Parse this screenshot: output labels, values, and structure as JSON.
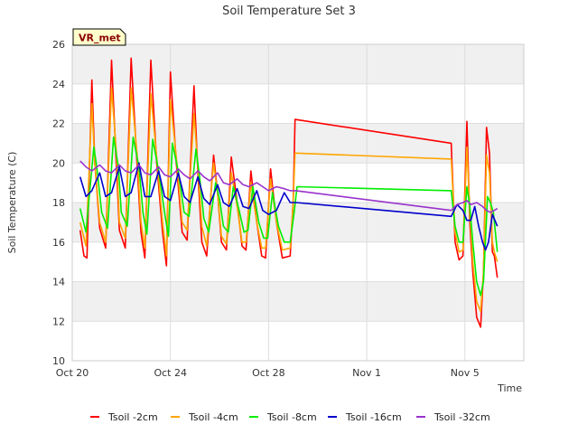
{
  "chart_data": {
    "type": "line",
    "title": "Soil Temperature Set 3",
    "xlabel": "Time",
    "ylabel": "Soil Temperature (C)",
    "badge": "VR_met",
    "x_unit": "days_since_2021-10-20",
    "xlim": [
      0,
      23
    ],
    "ylim": [
      10,
      26
    ],
    "yticks": [
      10,
      12,
      14,
      16,
      18,
      20,
      22,
      24,
      26
    ],
    "xticks": [
      {
        "x": 0,
        "label": "Oct 20"
      },
      {
        "x": 5,
        "label": "Oct 24"
      },
      {
        "x": 10,
        "label": "Oct 28"
      },
      {
        "x": 15,
        "label": "Nov 1"
      },
      {
        "x": 20,
        "label": "Nov 5"
      }
    ],
    "grid": true,
    "legend_position": "bottom",
    "colors": {
      "plot_band": "#f0f0f0",
      "grid": "#dddddd",
      "badge_bg": "#ffffcc"
    },
    "series": [
      {
        "name": "Tsoil -2cm",
        "color": "#ff0000",
        "x": [
          0.4,
          0.6,
          0.75,
          1.0,
          1.15,
          1.4,
          1.7,
          2.0,
          2.25,
          2.4,
          2.7,
          3.0,
          3.3,
          3.5,
          3.7,
          4.0,
          4.3,
          4.6,
          4.8,
          5.0,
          5.3,
          5.6,
          5.85,
          6.2,
          6.4,
          6.6,
          6.85,
          7.2,
          7.4,
          7.6,
          7.85,
          8.1,
          8.4,
          8.65,
          8.85,
          9.1,
          9.4,
          9.65,
          9.85,
          10.1,
          10.4,
          10.7,
          11.1,
          11.25,
          11.35,
          19.3,
          19.5,
          19.7,
          19.9,
          20.1,
          20.25,
          20.4,
          20.6,
          20.8,
          20.95,
          21.1,
          21.25,
          21.4,
          21.5,
          21.65
        ],
        "y": [
          16.6,
          15.3,
          15.2,
          24.2,
          20.0,
          16.7,
          15.7,
          25.2,
          19.8,
          16.6,
          15.7,
          25.3,
          20.0,
          16.5,
          15.2,
          25.2,
          20.0,
          16.5,
          14.8,
          24.6,
          20.0,
          16.5,
          16.1,
          23.9,
          19.5,
          16.0,
          15.3,
          20.4,
          18.5,
          16.0,
          15.6,
          20.3,
          18.0,
          15.8,
          15.6,
          19.6,
          17.0,
          15.3,
          15.2,
          19.7,
          17.0,
          15.2,
          15.3,
          18.0,
          22.2,
          21.0,
          16.0,
          15.1,
          15.3,
          22.1,
          17.0,
          14.5,
          12.2,
          11.7,
          14.5,
          21.8,
          20.5,
          15.5,
          15.3,
          14.2
        ]
      },
      {
        "name": "Tsoil -4cm",
        "color": "#ffa500",
        "x": [
          0.4,
          0.7,
          1.0,
          1.15,
          1.4,
          1.7,
          2.0,
          2.25,
          2.4,
          2.7,
          3.0,
          3.3,
          3.5,
          3.7,
          4.0,
          4.3,
          4.6,
          4.8,
          5.0,
          5.3,
          5.6,
          5.85,
          6.2,
          6.4,
          6.6,
          6.85,
          7.2,
          7.4,
          7.6,
          7.85,
          8.1,
          8.4,
          8.65,
          8.85,
          9.1,
          9.4,
          9.65,
          9.85,
          10.1,
          10.4,
          10.7,
          11.1,
          11.25,
          11.35,
          19.3,
          19.5,
          19.7,
          19.9,
          20.1,
          20.25,
          20.4,
          20.6,
          20.8,
          20.95,
          21.1,
          21.25,
          21.4,
          21.5,
          21.65
        ],
        "y": [
          17.0,
          15.8,
          23.0,
          20.0,
          17.0,
          16.0,
          23.8,
          20.5,
          17.0,
          16.2,
          23.8,
          20.5,
          17.0,
          15.7,
          23.5,
          20.3,
          17.0,
          15.3,
          23.2,
          20.3,
          17.0,
          16.6,
          22.5,
          19.8,
          16.8,
          15.8,
          20.0,
          18.5,
          16.3,
          15.9,
          19.5,
          17.8,
          16.0,
          16.0,
          19.0,
          17.0,
          15.7,
          15.7,
          19.2,
          17.0,
          15.6,
          15.7,
          18.0,
          20.5,
          20.2,
          16.5,
          15.5,
          15.6,
          20.8,
          17.5,
          15.0,
          13.0,
          12.5,
          14.5,
          20.4,
          19.5,
          16.0,
          15.5,
          15.0
        ]
      },
      {
        "name": "Tsoil -8cm",
        "color": "#00ee00",
        "x": [
          0.4,
          0.7,
          1.1,
          1.25,
          1.5,
          1.8,
          2.1,
          2.35,
          2.5,
          2.8,
          3.1,
          3.4,
          3.6,
          3.8,
          4.1,
          4.4,
          4.7,
          4.9,
          5.1,
          5.4,
          5.7,
          5.95,
          6.3,
          6.5,
          6.7,
          6.95,
          7.3,
          7.5,
          7.7,
          7.95,
          8.2,
          8.5,
          8.75,
          8.95,
          9.2,
          9.5,
          9.75,
          9.95,
          10.2,
          10.5,
          10.8,
          11.1,
          11.3,
          11.45,
          19.3,
          19.5,
          19.7,
          19.9,
          20.1,
          20.25,
          20.4,
          20.6,
          20.8,
          20.95,
          21.15,
          21.3,
          21.45,
          21.55,
          21.65
        ],
        "y": [
          17.7,
          16.5,
          20.8,
          19.8,
          17.5,
          16.7,
          21.3,
          19.8,
          17.5,
          16.8,
          21.3,
          19.8,
          17.5,
          16.4,
          21.2,
          19.6,
          17.5,
          16.3,
          21.0,
          19.6,
          17.5,
          17.3,
          20.7,
          19.2,
          17.2,
          16.5,
          19.0,
          18.2,
          16.8,
          16.5,
          18.8,
          17.6,
          16.5,
          16.6,
          18.8,
          17.0,
          16.2,
          16.2,
          18.5,
          16.8,
          16.0,
          16.0,
          17.5,
          18.8,
          18.6,
          16.8,
          16.0,
          16.0,
          18.8,
          17.8,
          16.0,
          14.0,
          13.3,
          14.0,
          18.3,
          18.0,
          17.5,
          16.5,
          15.5
        ]
      },
      {
        "name": "Tsoil -16cm",
        "color": "#0000cc",
        "x": [
          0.4,
          0.7,
          1.0,
          1.4,
          1.7,
          2.0,
          2.4,
          2.7,
          3.0,
          3.4,
          3.7,
          4.0,
          4.4,
          4.7,
          5.0,
          5.4,
          5.7,
          6.0,
          6.4,
          6.7,
          7.0,
          7.4,
          7.7,
          8.0,
          8.4,
          8.7,
          9.0,
          9.4,
          9.7,
          10.0,
          10.4,
          10.8,
          11.1,
          11.4,
          19.3,
          19.6,
          19.9,
          20.1,
          20.3,
          20.5,
          20.7,
          20.9,
          21.05,
          21.2,
          21.4,
          21.65
        ],
        "y": [
          19.3,
          18.3,
          18.6,
          19.5,
          18.3,
          18.5,
          19.8,
          18.3,
          18.5,
          20.0,
          18.3,
          18.3,
          19.6,
          18.3,
          18.1,
          19.5,
          18.3,
          18.0,
          19.3,
          18.2,
          17.9,
          18.9,
          18.0,
          17.8,
          18.7,
          17.8,
          17.7,
          18.6,
          17.6,
          17.4,
          17.6,
          18.5,
          18.0,
          18.0,
          17.3,
          17.9,
          17.6,
          17.1,
          17.1,
          17.8,
          16.8,
          16.0,
          15.6,
          16.0,
          17.4,
          16.8
        ]
      },
      {
        "name": "Tsoil -32cm",
        "color": "#9933cc",
        "x": [
          0.4,
          0.7,
          1.0,
          1.4,
          1.7,
          2.0,
          2.4,
          2.7,
          3.0,
          3.4,
          3.7,
          4.0,
          4.4,
          4.7,
          5.0,
          5.4,
          5.7,
          6.0,
          6.4,
          6.7,
          7.0,
          7.4,
          7.7,
          8.0,
          8.4,
          8.7,
          9.0,
          9.4,
          9.7,
          10.0,
          10.4,
          10.8,
          11.1,
          11.4,
          19.3,
          19.6,
          19.9,
          20.1,
          20.3,
          20.6,
          20.9,
          21.1,
          21.3,
          21.5,
          21.65
        ],
        "y": [
          20.1,
          19.8,
          19.6,
          19.9,
          19.6,
          19.5,
          19.9,
          19.6,
          19.5,
          19.9,
          19.5,
          19.4,
          19.8,
          19.4,
          19.3,
          19.7,
          19.4,
          19.2,
          19.6,
          19.3,
          19.1,
          19.5,
          19.0,
          18.9,
          19.2,
          18.9,
          18.8,
          19.0,
          18.8,
          18.6,
          18.8,
          18.7,
          18.6,
          18.6,
          17.6,
          17.9,
          18.0,
          18.1,
          17.9,
          18.0,
          17.8,
          17.6,
          17.5,
          17.6,
          17.7
        ]
      }
    ]
  }
}
